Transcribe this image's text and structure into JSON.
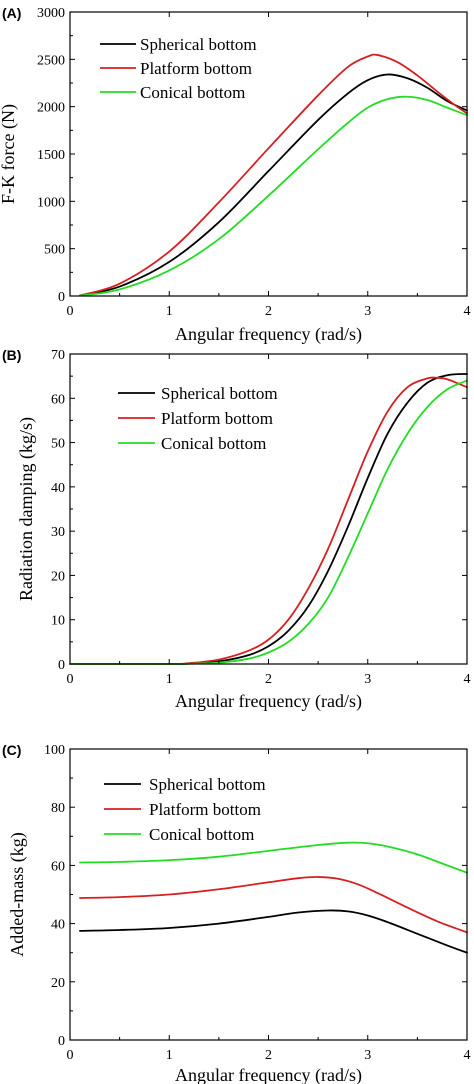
{
  "chart_data": [
    {
      "type": "line",
      "panel_label": "(A)",
      "xlabel": "Angular frequency (rad/s)",
      "ylabel": "F-K force (N)",
      "xlim": [
        0,
        4
      ],
      "ylim": [
        0,
        3000
      ],
      "xticks": [
        0,
        1,
        2,
        3,
        4
      ],
      "yticks": [
        0,
        500,
        1000,
        1500,
        2000,
        2500,
        3000
      ],
      "legend_placement": "top-left",
      "series": [
        {
          "name": "Spherical bottom",
          "color": "#000000",
          "x": [
            0.1,
            0.5,
            1.0,
            1.5,
            2.0,
            2.5,
            2.8,
            3.0,
            3.2,
            3.4,
            3.6,
            3.8,
            4.0
          ],
          "y": [
            5,
            100,
            360,
            780,
            1320,
            1860,
            2140,
            2280,
            2340,
            2300,
            2200,
            2060,
            1960
          ]
        },
        {
          "name": "Platform bottom",
          "color": "#d62020",
          "x": [
            0.1,
            0.5,
            1.0,
            1.5,
            2.0,
            2.5,
            2.8,
            3.0,
            3.1,
            3.3,
            3.5,
            3.7,
            3.9,
            4.0
          ],
          "y": [
            5,
            130,
            470,
            990,
            1560,
            2120,
            2420,
            2530,
            2545,
            2470,
            2330,
            2160,
            2000,
            1930
          ]
        },
        {
          "name": "Conical bottom",
          "color": "#22dd22",
          "x": [
            0.1,
            0.5,
            1.0,
            1.5,
            2.0,
            2.5,
            2.8,
            3.0,
            3.2,
            3.4,
            3.6,
            3.8,
            4.0
          ],
          "y": [
            3,
            70,
            270,
            600,
            1060,
            1550,
            1830,
            1990,
            2080,
            2105,
            2070,
            1990,
            1910
          ]
        }
      ]
    },
    {
      "type": "line",
      "panel_label": "(B)",
      "xlabel": "Angular frequency (rad/s)",
      "ylabel": "Radiation damping (kg/s)",
      "xlim": [
        0,
        4
      ],
      "ylim": [
        0,
        70
      ],
      "xticks": [
        0,
        1,
        2,
        3,
        4
      ],
      "yticks": [
        0,
        10,
        20,
        30,
        40,
        50,
        60,
        70
      ],
      "legend_placement": "top-left",
      "series": [
        {
          "name": "Spherical bottom",
          "color": "#000000",
          "x": [
            0,
            1.0,
            1.2,
            1.5,
            1.8,
            2.0,
            2.2,
            2.4,
            2.6,
            2.8,
            3.0,
            3.2,
            3.4,
            3.6,
            3.8,
            4.0
          ],
          "y": [
            0,
            0,
            0.1,
            0.6,
            2,
            4,
            7.5,
            13,
            21,
            31,
            42,
            52,
            59,
            63.5,
            65.2,
            65.5
          ]
        },
        {
          "name": "Platform bottom",
          "color": "#d62020",
          "x": [
            0,
            1.0,
            1.2,
            1.5,
            1.8,
            2.0,
            2.2,
            2.4,
            2.6,
            2.8,
            3.0,
            3.2,
            3.4,
            3.6,
            3.7,
            3.8,
            4.0
          ],
          "y": [
            0,
            0,
            0.2,
            1,
            3,
            5.5,
            10,
            17,
            26,
            37,
            48,
            57,
            62.5,
            64.5,
            64.6,
            64.3,
            62.5
          ]
        },
        {
          "name": "Conical bottom",
          "color": "#22dd22",
          "x": [
            0,
            1.0,
            1.2,
            1.5,
            1.8,
            2.0,
            2.2,
            2.4,
            2.6,
            2.8,
            3.0,
            3.2,
            3.4,
            3.6,
            3.8,
            4.0
          ],
          "y": [
            0,
            0,
            0.05,
            0.3,
            1.2,
            2.6,
            5,
            9,
            15,
            24,
            34,
            44,
            52,
            58,
            62,
            64
          ]
        }
      ]
    },
    {
      "type": "line",
      "panel_label": "(C)",
      "xlabel": "Angular frequency (rad/s)",
      "ylabel": "Added-mass (kg)",
      "xlim": [
        0,
        4
      ],
      "ylim": [
        0,
        100
      ],
      "xticks": [
        0,
        1,
        2,
        3,
        4
      ],
      "yticks": [
        0,
        20,
        40,
        60,
        80,
        100
      ],
      "legend_placement": "top-left",
      "series": [
        {
          "name": "Spherical bottom",
          "color": "#000000",
          "x": [
            0.1,
            0.5,
            1.0,
            1.5,
            2.0,
            2.3,
            2.6,
            2.8,
            3.0,
            3.2,
            3.5,
            3.8,
            4.0
          ],
          "y": [
            37.5,
            37.8,
            38.5,
            40,
            42.3,
            43.8,
            44.5,
            44.2,
            42.8,
            40.5,
            36.5,
            32.5,
            30
          ]
        },
        {
          "name": "Platform bottom",
          "color": "#d62020",
          "x": [
            0.1,
            0.5,
            1.0,
            1.5,
            2.0,
            2.3,
            2.5,
            2.7,
            2.9,
            3.1,
            3.4,
            3.7,
            4.0
          ],
          "y": [
            48.8,
            49.1,
            50,
            51.8,
            54.2,
            55.6,
            56,
            55.4,
            53.5,
            50.5,
            45.5,
            40.8,
            37
          ]
        },
        {
          "name": "Conical bottom",
          "color": "#22dd22",
          "x": [
            0.1,
            0.5,
            1.0,
            1.5,
            2.0,
            2.5,
            2.8,
            3.0,
            3.2,
            3.5,
            3.8,
            4.0
          ],
          "y": [
            61,
            61.2,
            61.8,
            63,
            65,
            67,
            67.8,
            67.6,
            66.5,
            63.8,
            60,
            57.5
          ]
        }
      ]
    }
  ]
}
